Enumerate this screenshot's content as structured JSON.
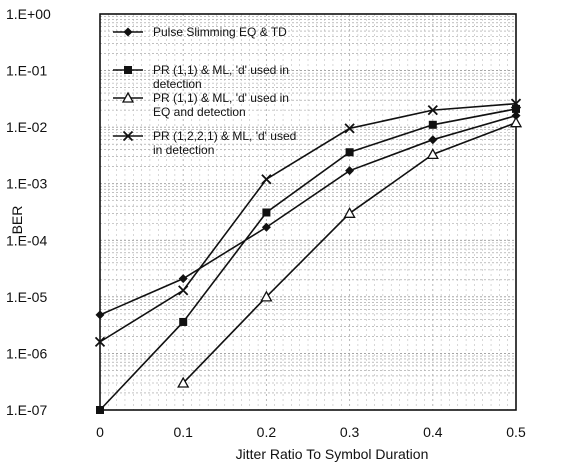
{
  "chart_data": {
    "type": "line",
    "title": "",
    "xlabel": "Jitter Ratio To Symbol Duration",
    "ylabel": "BER",
    "xlim": [
      0,
      0.5
    ],
    "ylim": [
      1e-07,
      1
    ],
    "y_scale": "log",
    "grid": "dotted, major and minor",
    "legend_position": "top-left",
    "x_ticks": [
      "0",
      "0.1",
      "0.2",
      "0.3",
      "0.4",
      "0.5"
    ],
    "y_ticks": [
      "1.E+00",
      "1.E-01",
      "1.E-02",
      "1.E-03",
      "1.E-04",
      "1.E-05",
      "1.E-06",
      "1.E-07"
    ],
    "series": [
      {
        "name_lines": [
          "Pulse Slimming EQ & TD"
        ],
        "marker": "diamond",
        "color": "#111111",
        "x": [
          0,
          0.1,
          0.2,
          0.3,
          0.4,
          0.5
        ],
        "y": [
          4.8e-06,
          2.1e-05,
          0.00017,
          0.0017,
          0.006,
          0.016
        ]
      },
      {
        "name_lines": [
          "PR (1,1) & ML, 'd' used in",
          "detection"
        ],
        "marker": "square",
        "color": "#111111",
        "x": [
          0,
          0.1,
          0.2,
          0.3,
          0.4,
          0.5
        ],
        "y": [
          1e-07,
          3.6e-06,
          0.00031,
          0.0036,
          0.011,
          0.021
        ]
      },
      {
        "name_lines": [
          "PR (1,1) & ML, 'd' used in",
          "EQ and detection"
        ],
        "marker": "triangle",
        "color": "#111111",
        "x": [
          0.1,
          0.2,
          0.3,
          0.4,
          0.5
        ],
        "y": [
          3e-07,
          1e-05,
          0.0003,
          0.0033,
          0.012
        ]
      },
      {
        "name_lines": [
          "PR (1,2,2,1) & ML, 'd' used",
          "in detection"
        ],
        "marker": "x",
        "color": "#111111",
        "x": [
          0,
          0.1,
          0.2,
          0.3,
          0.4,
          0.5
        ],
        "y": [
          1.6e-06,
          1.3e-05,
          0.0012,
          0.0095,
          0.02,
          0.026
        ]
      }
    ]
  }
}
